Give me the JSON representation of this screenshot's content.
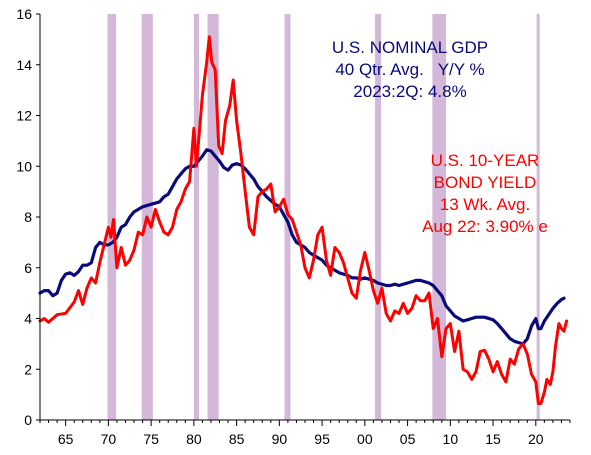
{
  "chart_data": {
    "type": "line",
    "xlim": [
      1962,
      2024
    ],
    "ylim": [
      0,
      16
    ],
    "grid": false,
    "x_ticks": [
      {
        "value": 1965,
        "label": "65"
      },
      {
        "value": 1970,
        "label": "70"
      },
      {
        "value": 1975,
        "label": "75"
      },
      {
        "value": 1980,
        "label": "80"
      },
      {
        "value": 1985,
        "label": "85"
      },
      {
        "value": 1990,
        "label": "90"
      },
      {
        "value": 1995,
        "label": "95"
      },
      {
        "value": 2000,
        "label": "00"
      },
      {
        "value": 2005,
        "label": "05"
      },
      {
        "value": 2010,
        "label": "10"
      },
      {
        "value": 2015,
        "label": "15"
      },
      {
        "value": 2020,
        "label": "20"
      }
    ],
    "y_ticks": [
      0,
      2,
      4,
      6,
      8,
      10,
      12,
      14,
      16
    ],
    "recessions": [
      [
        1969.9,
        1970.9
      ],
      [
        1973.9,
        1975.2
      ],
      [
        1980.0,
        1980.6
      ],
      [
        1981.6,
        1982.9
      ],
      [
        1990.6,
        1991.3
      ],
      [
        2001.2,
        2001.9
      ],
      [
        2007.9,
        2009.5
      ],
      [
        2020.1,
        2020.4
      ]
    ],
    "series": [
      {
        "name": "U.S. NOMINAL GDP 40 Qtr. Avg. Y/Y %",
        "color": "#0a0a7a",
        "values": [
          [
            1962.0,
            5.0
          ],
          [
            1962.5,
            5.1
          ],
          [
            1963.0,
            5.1
          ],
          [
            1963.5,
            4.9
          ],
          [
            1964.0,
            5.0
          ],
          [
            1964.5,
            5.5
          ],
          [
            1965.0,
            5.75
          ],
          [
            1965.5,
            5.8
          ],
          [
            1966.0,
            5.7
          ],
          [
            1966.5,
            5.85
          ],
          [
            1967.0,
            6.1
          ],
          [
            1967.5,
            6.1
          ],
          [
            1968.0,
            6.2
          ],
          [
            1968.5,
            6.8
          ],
          [
            1969.0,
            7.0
          ],
          [
            1969.5,
            6.9
          ],
          [
            1970.0,
            6.9
          ],
          [
            1970.5,
            7.0
          ],
          [
            1971.0,
            7.2
          ],
          [
            1971.5,
            7.6
          ],
          [
            1972.0,
            7.7
          ],
          [
            1972.5,
            8.0
          ],
          [
            1973.0,
            8.2
          ],
          [
            1973.5,
            8.3
          ],
          [
            1974.0,
            8.4
          ],
          [
            1975.0,
            8.5
          ],
          [
            1976.0,
            8.6
          ],
          [
            1976.5,
            8.8
          ],
          [
            1977.0,
            8.9
          ],
          [
            1977.5,
            9.2
          ],
          [
            1978.0,
            9.5
          ],
          [
            1978.5,
            9.7
          ],
          [
            1979.0,
            9.9
          ],
          [
            1979.5,
            10.0
          ],
          [
            1980.0,
            10.0
          ],
          [
            1980.5,
            10.2
          ],
          [
            1981.0,
            10.4
          ],
          [
            1981.5,
            10.65
          ],
          [
            1982.0,
            10.6
          ],
          [
            1982.5,
            10.4
          ],
          [
            1983.0,
            10.2
          ],
          [
            1983.5,
            9.95
          ],
          [
            1984.0,
            9.85
          ],
          [
            1984.5,
            10.05
          ],
          [
            1985.0,
            10.1
          ],
          [
            1985.5,
            10.05
          ],
          [
            1986.0,
            9.9
          ],
          [
            1986.5,
            9.7
          ],
          [
            1987.0,
            9.5
          ],
          [
            1987.5,
            9.2
          ],
          [
            1988.0,
            9.0
          ],
          [
            1988.5,
            8.8
          ],
          [
            1989.0,
            8.65
          ],
          [
            1989.5,
            8.5
          ],
          [
            1990.0,
            8.4
          ],
          [
            1990.5,
            8.1
          ],
          [
            1991.0,
            7.8
          ],
          [
            1991.5,
            7.3
          ],
          [
            1992.0,
            7.0
          ],
          [
            1992.5,
            6.9
          ],
          [
            1993.0,
            6.8
          ],
          [
            1993.5,
            6.6
          ],
          [
            1994.0,
            6.5
          ],
          [
            1994.5,
            6.4
          ],
          [
            1995.0,
            6.3
          ],
          [
            1995.5,
            6.1
          ],
          [
            1996.0,
            6.0
          ],
          [
            1996.5,
            5.9
          ],
          [
            1997.0,
            5.8
          ],
          [
            1997.5,
            5.75
          ],
          [
            1998.0,
            5.7
          ],
          [
            1998.5,
            5.6
          ],
          [
            1999.0,
            5.6
          ],
          [
            1999.5,
            5.55
          ],
          [
            2000.0,
            5.6
          ],
          [
            2000.5,
            5.55
          ],
          [
            2001.0,
            5.5
          ],
          [
            2001.5,
            5.4
          ],
          [
            2002.0,
            5.35
          ],
          [
            2002.5,
            5.3
          ],
          [
            2003.0,
            5.3
          ],
          [
            2003.5,
            5.35
          ],
          [
            2004.0,
            5.3
          ],
          [
            2004.5,
            5.35
          ],
          [
            2005.0,
            5.4
          ],
          [
            2005.5,
            5.45
          ],
          [
            2006.0,
            5.5
          ],
          [
            2006.5,
            5.5
          ],
          [
            2007.0,
            5.45
          ],
          [
            2007.5,
            5.4
          ],
          [
            2008.0,
            5.3
          ],
          [
            2008.5,
            5.1
          ],
          [
            2009.0,
            4.9
          ],
          [
            2009.5,
            4.5
          ],
          [
            2010.0,
            4.3
          ],
          [
            2010.5,
            4.1
          ],
          [
            2011.0,
            4.0
          ],
          [
            2011.5,
            3.9
          ],
          [
            2012.0,
            3.95
          ],
          [
            2012.5,
            4.0
          ],
          [
            2013.0,
            4.05
          ],
          [
            2014.0,
            4.05
          ],
          [
            2015.0,
            3.95
          ],
          [
            2015.5,
            3.8
          ],
          [
            2016.0,
            3.6
          ],
          [
            2016.5,
            3.4
          ],
          [
            2017.0,
            3.2
          ],
          [
            2017.5,
            3.1
          ],
          [
            2018.0,
            3.05
          ],
          [
            2018.5,
            3.0
          ],
          [
            2019.0,
            3.2
          ],
          [
            2019.5,
            3.7
          ],
          [
            2020.0,
            4.0
          ],
          [
            2020.3,
            3.6
          ],
          [
            2020.6,
            3.6
          ],
          [
            2021.0,
            3.9
          ],
          [
            2021.5,
            4.15
          ],
          [
            2022.0,
            4.4
          ],
          [
            2022.5,
            4.6
          ],
          [
            2023.0,
            4.75
          ],
          [
            2023.3,
            4.8
          ]
        ]
      },
      {
        "name": "U.S. 10-YEAR BOND YIELD 13 Wk. Avg.",
        "color": "#ff0000",
        "values": [
          [
            1962.0,
            3.9
          ],
          [
            1962.5,
            4.0
          ],
          [
            1963.0,
            3.85
          ],
          [
            1963.5,
            4.0
          ],
          [
            1964.0,
            4.15
          ],
          [
            1965.0,
            4.2
          ],
          [
            1966.0,
            4.65
          ],
          [
            1966.5,
            5.1
          ],
          [
            1967.0,
            4.55
          ],
          [
            1967.5,
            5.2
          ],
          [
            1968.0,
            5.6
          ],
          [
            1968.5,
            5.4
          ],
          [
            1969.0,
            6.2
          ],
          [
            1969.5,
            6.9
          ],
          [
            1970.0,
            7.6
          ],
          [
            1970.3,
            7.2
          ],
          [
            1970.6,
            7.9
          ],
          [
            1971.0,
            6.0
          ],
          [
            1971.5,
            6.8
          ],
          [
            1972.0,
            6.1
          ],
          [
            1972.5,
            6.3
          ],
          [
            1973.0,
            6.7
          ],
          [
            1973.5,
            7.4
          ],
          [
            1974.0,
            7.3
          ],
          [
            1974.5,
            8.0
          ],
          [
            1975.0,
            7.6
          ],
          [
            1975.5,
            8.3
          ],
          [
            1976.0,
            7.8
          ],
          [
            1976.5,
            7.4
          ],
          [
            1977.0,
            7.3
          ],
          [
            1977.5,
            7.6
          ],
          [
            1978.0,
            8.3
          ],
          [
            1978.5,
            8.6
          ],
          [
            1979.0,
            9.1
          ],
          [
            1979.5,
            9.4
          ],
          [
            1980.0,
            11.5
          ],
          [
            1980.3,
            10.0
          ],
          [
            1980.7,
            11.6
          ],
          [
            1981.0,
            12.8
          ],
          [
            1981.5,
            14.1
          ],
          [
            1981.8,
            15.1
          ],
          [
            1982.1,
            14.1
          ],
          [
            1982.5,
            13.8
          ],
          [
            1982.9,
            10.8
          ],
          [
            1983.3,
            10.5
          ],
          [
            1983.7,
            11.8
          ],
          [
            1984.2,
            12.4
          ],
          [
            1984.6,
            13.4
          ],
          [
            1985.0,
            11.8
          ],
          [
            1985.5,
            10.5
          ],
          [
            1986.0,
            9.0
          ],
          [
            1986.5,
            7.6
          ],
          [
            1987.0,
            7.3
          ],
          [
            1987.5,
            8.8
          ],
          [
            1988.0,
            9.0
          ],
          [
            1988.5,
            9.1
          ],
          [
            1989.0,
            9.3
          ],
          [
            1989.5,
            8.2
          ],
          [
            1990.0,
            8.4
          ],
          [
            1990.5,
            8.7
          ],
          [
            1991.0,
            8.1
          ],
          [
            1991.5,
            7.9
          ],
          [
            1992.0,
            7.4
          ],
          [
            1992.5,
            6.9
          ],
          [
            1993.0,
            6.0
          ],
          [
            1993.5,
            5.6
          ],
          [
            1994.0,
            6.3
          ],
          [
            1994.5,
            7.3
          ],
          [
            1995.0,
            7.6
          ],
          [
            1995.5,
            6.3
          ],
          [
            1996.0,
            5.7
          ],
          [
            1996.5,
            6.8
          ],
          [
            1997.0,
            6.6
          ],
          [
            1997.5,
            6.2
          ],
          [
            1998.0,
            5.6
          ],
          [
            1998.5,
            5.0
          ],
          [
            1999.0,
            4.8
          ],
          [
            1999.5,
            5.9
          ],
          [
            2000.0,
            6.6
          ],
          [
            2000.5,
            5.9
          ],
          [
            2001.0,
            5.1
          ],
          [
            2001.5,
            4.6
          ],
          [
            2002.0,
            5.2
          ],
          [
            2002.5,
            4.2
          ],
          [
            2003.0,
            3.9
          ],
          [
            2003.5,
            4.3
          ],
          [
            2004.0,
            4.2
          ],
          [
            2004.5,
            4.6
          ],
          [
            2005.0,
            4.2
          ],
          [
            2005.5,
            4.4
          ],
          [
            2006.0,
            4.9
          ],
          [
            2006.5,
            4.7
          ],
          [
            2007.0,
            4.7
          ],
          [
            2007.5,
            5.0
          ],
          [
            2008.0,
            3.6
          ],
          [
            2008.5,
            4.0
          ],
          [
            2009.0,
            2.5
          ],
          [
            2009.5,
            3.6
          ],
          [
            2010.0,
            3.8
          ],
          [
            2010.5,
            2.7
          ],
          [
            2011.0,
            3.5
          ],
          [
            2011.5,
            2.0
          ],
          [
            2012.0,
            1.9
          ],
          [
            2012.5,
            1.6
          ],
          [
            2013.0,
            1.9
          ],
          [
            2013.5,
            2.7
          ],
          [
            2014.0,
            2.75
          ],
          [
            2014.5,
            2.4
          ],
          [
            2015.0,
            1.9
          ],
          [
            2015.5,
            2.3
          ],
          [
            2016.0,
            1.8
          ],
          [
            2016.5,
            1.5
          ],
          [
            2017.0,
            2.4
          ],
          [
            2017.5,
            2.2
          ],
          [
            2018.0,
            2.8
          ],
          [
            2018.5,
            3.0
          ],
          [
            2019.0,
            2.6
          ],
          [
            2019.5,
            1.8
          ],
          [
            2020.0,
            1.5
          ],
          [
            2020.3,
            0.65
          ],
          [
            2020.6,
            0.65
          ],
          [
            2021.0,
            1.1
          ],
          [
            2021.3,
            1.6
          ],
          [
            2021.7,
            1.4
          ],
          [
            2022.0,
            1.9
          ],
          [
            2022.3,
            2.9
          ],
          [
            2022.7,
            3.8
          ],
          [
            2023.0,
            3.6
          ],
          [
            2023.3,
            3.5
          ],
          [
            2023.6,
            3.9
          ]
        ]
      }
    ]
  },
  "annotations": {
    "gdp": [
      "U.S. NOMINAL GDP",
      "40 Qtr. Avg.   Y/Y %",
      "2023:2Q: 4.8%"
    ],
    "bond": [
      "U.S. 10-YEAR",
      "BOND YIELD",
      "13 Wk. Avg.",
      "Aug 22: 3.90% e"
    ]
  }
}
